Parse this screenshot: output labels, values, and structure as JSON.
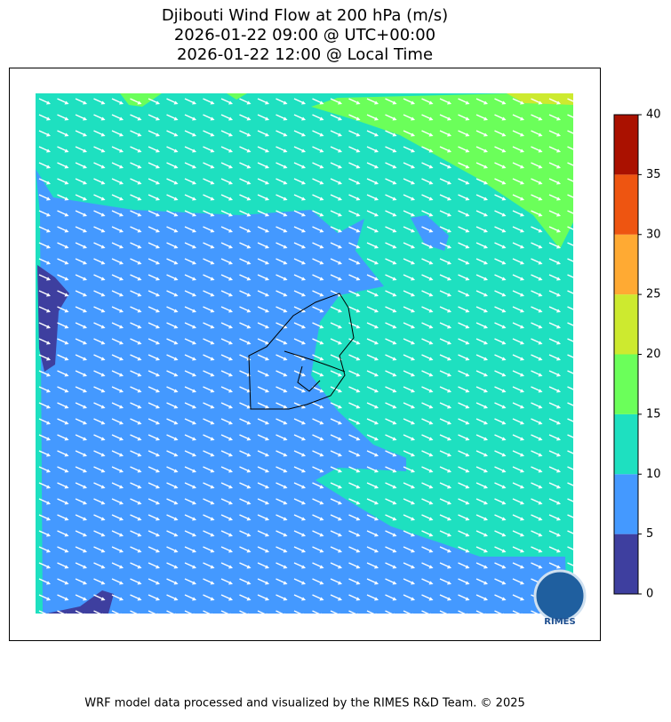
{
  "title": [
    "Djibouti Wind Flow at 200 hPa (m/s)",
    "2026-01-22 09:00 @ UTC+00:00",
    "2026-01-22 12:00 @ Local Time"
  ],
  "colorbar": {
    "levels": [
      0,
      5,
      10,
      15,
      20,
      25,
      30,
      35,
      40
    ],
    "colors": [
      "#3e3f9f",
      "#4499ff",
      "#1ee0c0",
      "#6bff5a",
      "#cdea2f",
      "#ffaa33",
      "#ee5511",
      "#aa1100"
    ]
  },
  "logo_text": "RIMES",
  "footer": "WRF model data processed and visualized by the RIMES R&D Team. © 2025"
}
